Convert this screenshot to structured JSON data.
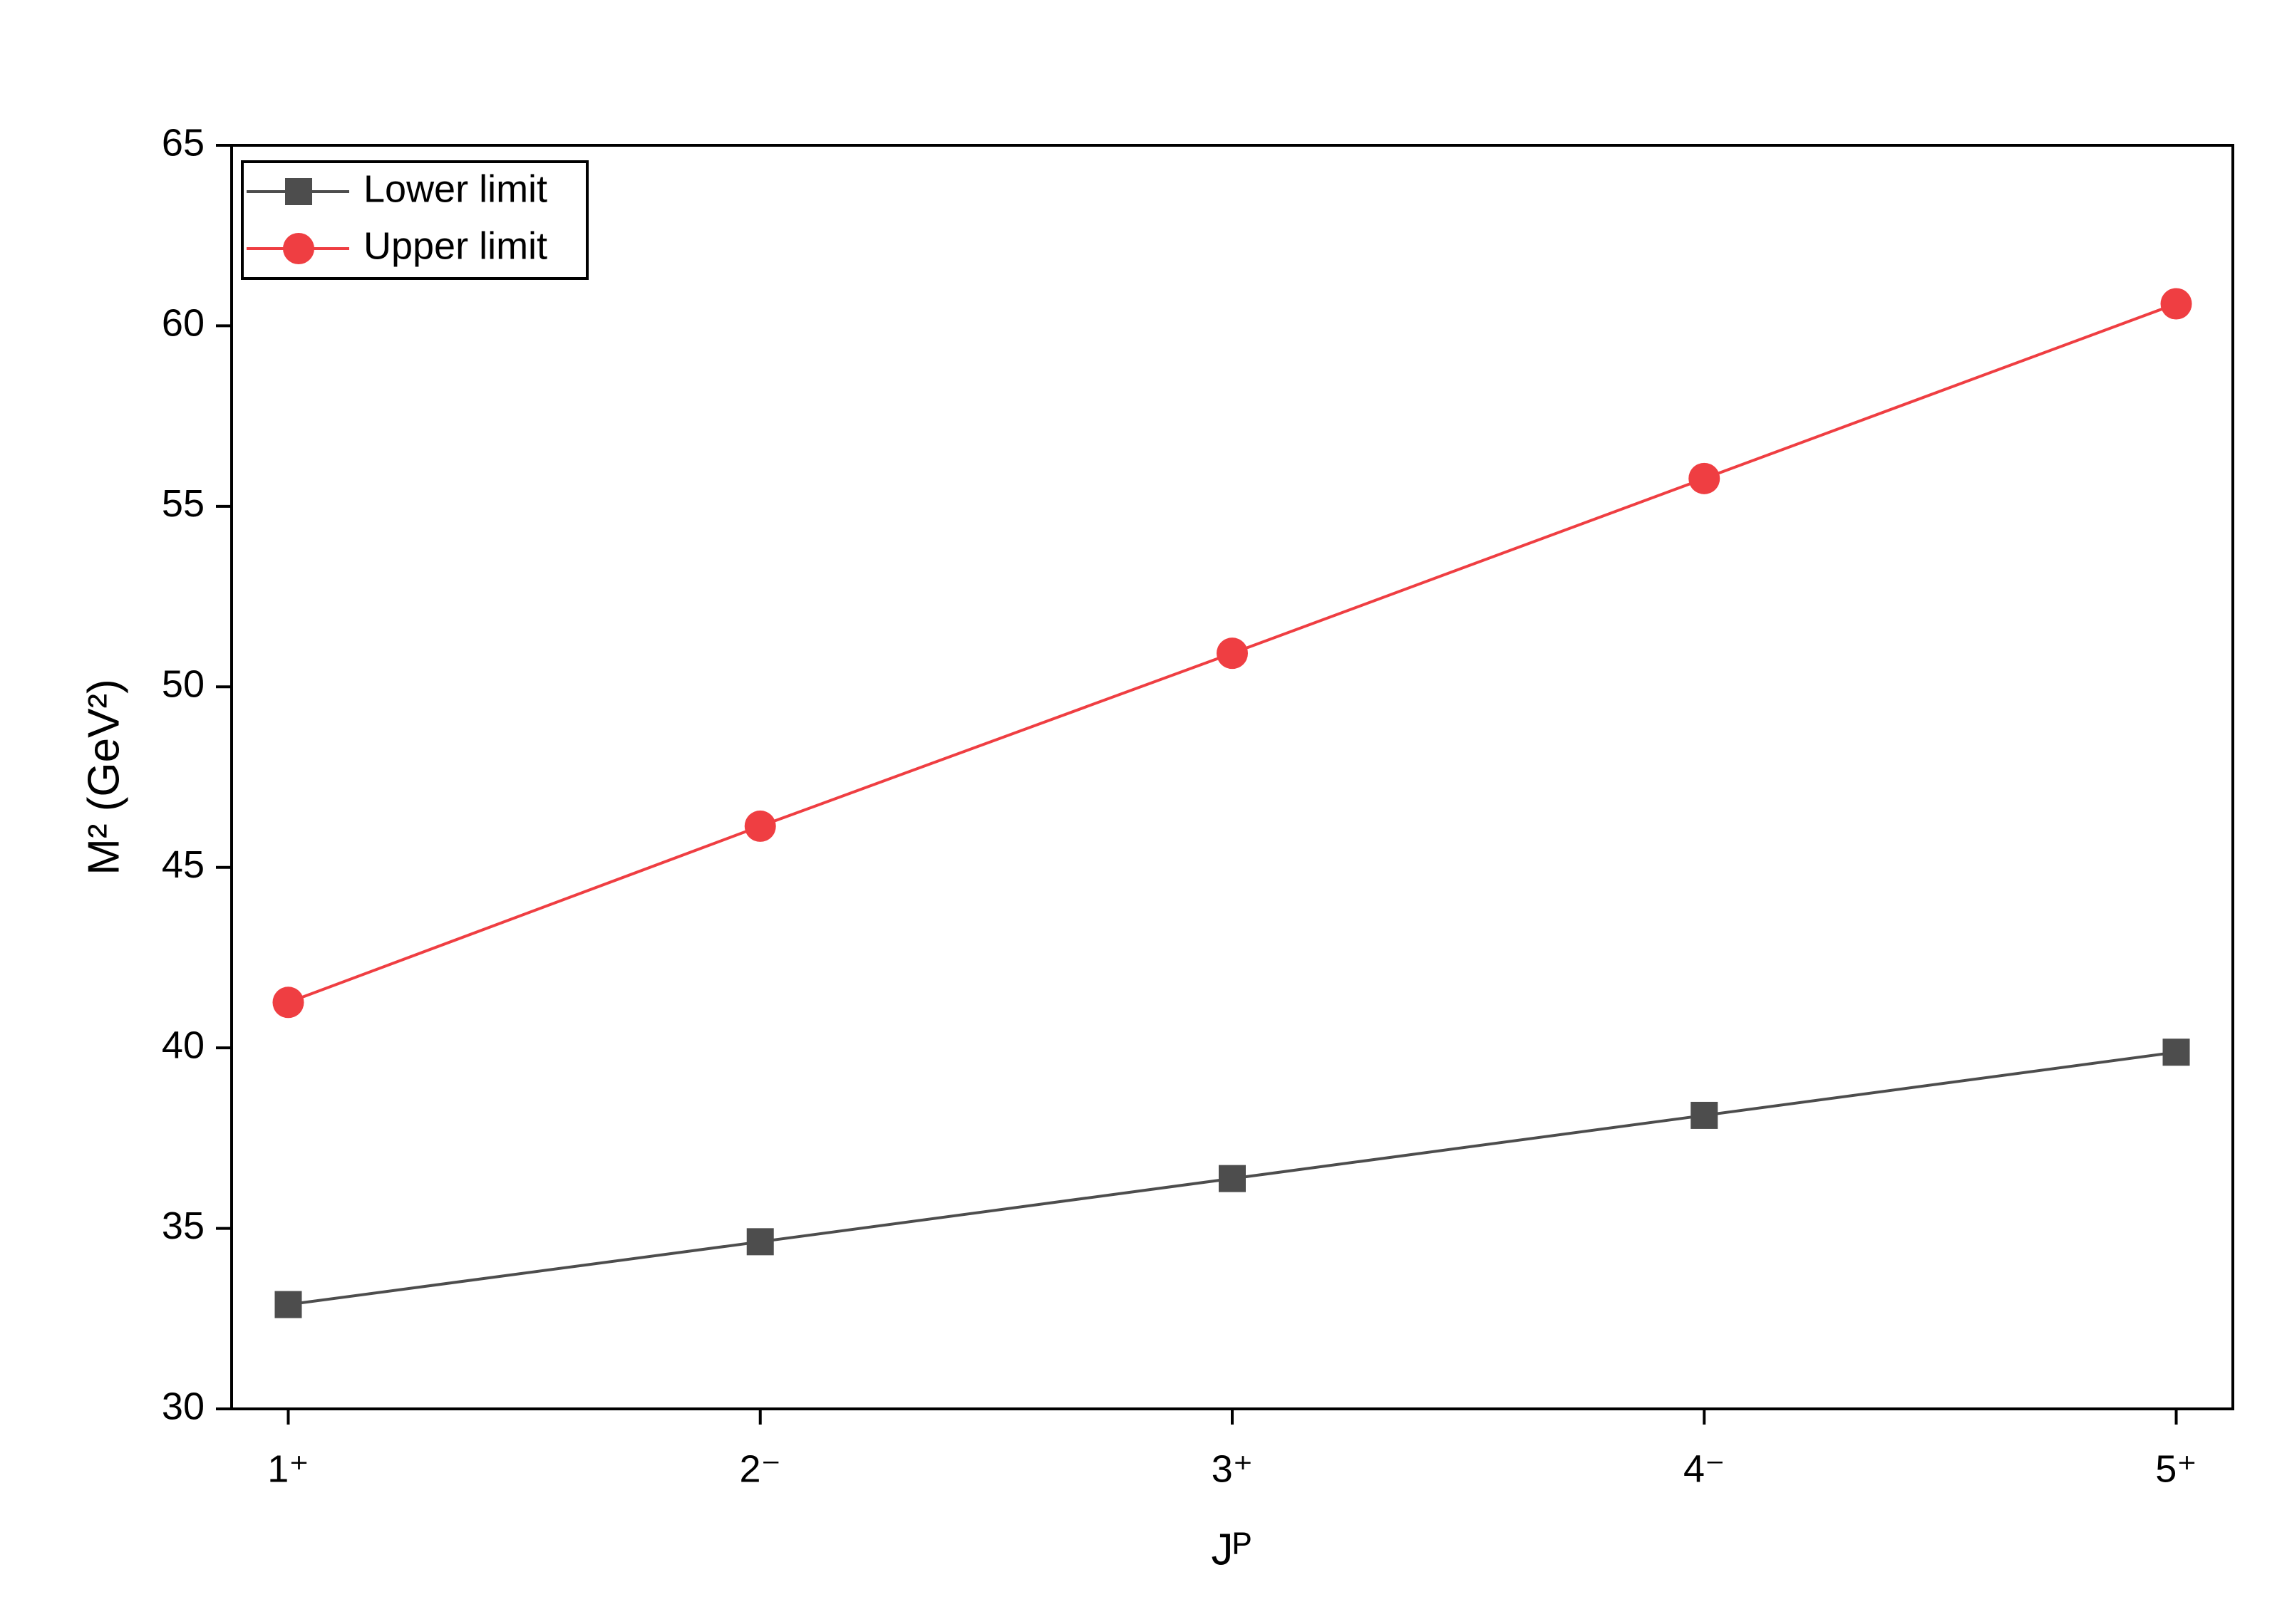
{
  "chart_data": {
    "type": "line",
    "x_label": "Jᴾ",
    "y_label": "M² (GeV²)",
    "categories": [
      "1⁺",
      "2⁻",
      "3⁺",
      "4⁻",
      "5⁺"
    ],
    "series": [
      {
        "name": "Lower limit",
        "color": "#4d4d4d",
        "marker": "square",
        "values": [
          32.89,
          34.63,
          36.38,
          38.13,
          39.88
        ]
      },
      {
        "name": "Upper limit",
        "color": "#ef3e42",
        "marker": "circle",
        "values": [
          41.26,
          46.14,
          50.93,
          55.77,
          60.61
        ]
      }
    ],
    "ylim": [
      30,
      65
    ],
    "yticks": [
      30,
      35,
      40,
      45,
      50,
      55,
      60,
      65
    ],
    "legend": "upper-left",
    "grid": false
  }
}
